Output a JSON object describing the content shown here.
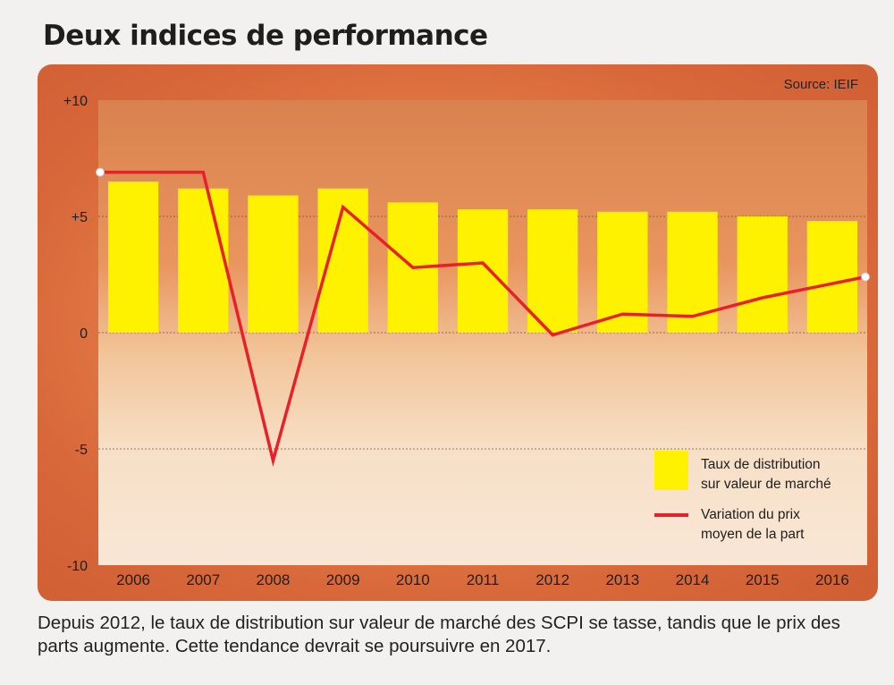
{
  "title": "Deux indices de performance",
  "source": "Source: IEIF",
  "caption": "Depuis 2012, le taux de distribution sur valeur de marché des SCPI se tasse, tandis que le prix des parts augmente. Cette tendance devrait se poursuivre en 2017.",
  "colors": {
    "bar": "#fff200",
    "line": "#e8202a",
    "background": "#d8683a"
  },
  "chart_data": {
    "type": "bar",
    "categories": [
      "2006",
      "2007",
      "2008",
      "2009",
      "2010",
      "2011",
      "2012",
      "2013",
      "2014",
      "2015",
      "2016"
    ],
    "series": [
      {
        "name": "Taux de distribution sur valeur de marché",
        "type": "bar",
        "values": [
          6.5,
          6.2,
          5.9,
          6.2,
          5.6,
          5.3,
          5.3,
          5.2,
          5.2,
          5.0,
          4.8
        ]
      },
      {
        "name": "Variation du prix moyen de la part",
        "type": "line",
        "values": [
          6.9,
          6.9,
          -5.5,
          5.4,
          2.8,
          3.0,
          -0.1,
          0.8,
          0.7,
          1.5,
          2.4
        ]
      }
    ],
    "legend": [
      {
        "line1": "Taux de distribution",
        "line2": "sur valeur de marché"
      },
      {
        "line1": "Variation du prix",
        "line2": "moyen de la part"
      }
    ],
    "yticks": [
      "+10",
      "+5",
      "0",
      "-5",
      "-10"
    ],
    "ylim": [
      -10,
      10
    ],
    "legend_position": "bottom-right"
  }
}
